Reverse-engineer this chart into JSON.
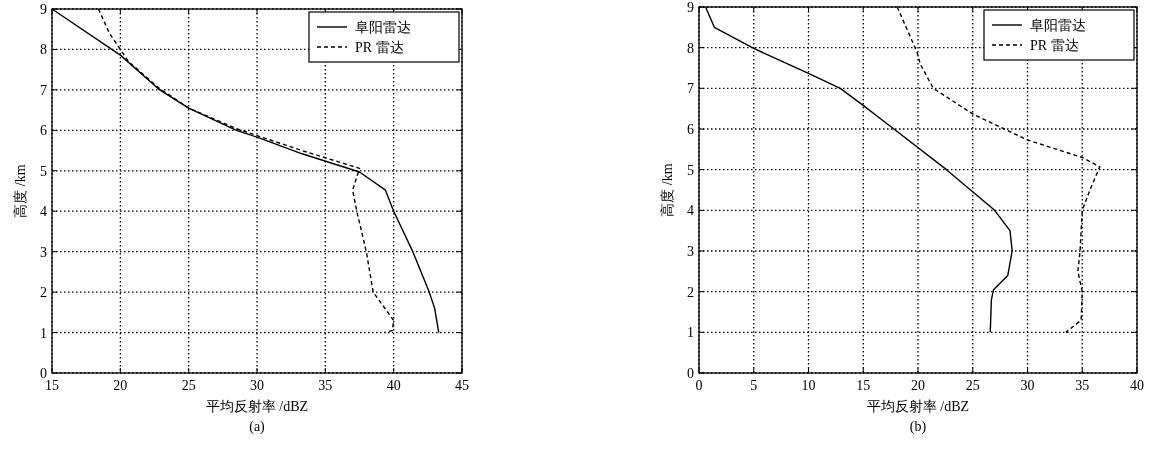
{
  "chart_data": [
    {
      "type": "line",
      "xlabel": "平均反射率 /dBZ",
      "ylabel": "高度 /km",
      "annotations": [
        "(a)"
      ],
      "xlim": [
        15,
        45
      ],
      "xticks": [
        15,
        20,
        25,
        30,
        35,
        40,
        45
      ],
      "ylim": [
        0,
        9
      ],
      "yticks": [
        0,
        1,
        2,
        3,
        4,
        5,
        6,
        7,
        8,
        9
      ],
      "grid": true,
      "legend": "top right",
      "series": [
        {
          "name": "阜阳雷达",
          "color": "#000000",
          "line_style": "solid",
          "x": [
            15,
            20,
            22.8,
            25,
            28.5,
            30,
            33.3,
            37.5,
            39.4,
            40,
            41.4,
            42.6,
            43,
            43.3
          ],
          "values": [
            9,
            7.86,
            7.02,
            6.55,
            6,
            5.83,
            5.42,
            4.97,
            4.52,
            4,
            3,
            2,
            1.6,
            1
          ]
        },
        {
          "name": "PR 雷达",
          "color": "#000000",
          "line_style": "dashed",
          "x": [
            18.4,
            19.2,
            20,
            20.6,
            22.8,
            25,
            28.5,
            30,
            33.3,
            37.5,
            37,
            37.3,
            38,
            38.5,
            40,
            39.9,
            39.3
          ],
          "values": [
            9,
            8.4,
            8,
            7.7,
            7.05,
            6.55,
            6.04,
            5.87,
            5.5,
            5.06,
            4.52,
            4,
            3,
            2,
            1.3,
            1.05,
            1
          ]
        }
      ]
    },
    {
      "type": "line",
      "xlabel": "平均反射率 /dBZ",
      "ylabel": "高度 /km",
      "annotations": [
        "(b)"
      ],
      "xlim": [
        0,
        40
      ],
      "xticks": [
        0,
        5,
        10,
        15,
        20,
        25,
        30,
        35,
        40
      ],
      "ylim": [
        0,
        9
      ],
      "yticks": [
        0,
        1,
        2,
        3,
        4,
        5,
        6,
        7,
        8,
        9
      ],
      "grid": true,
      "legend": "top right",
      "series": [
        {
          "name": "阜阳雷达",
          "color": "#000000",
          "line_style": "solid",
          "x": [
            0.6,
            1.4,
            5,
            10,
            12.9,
            14.9,
            17.8,
            22.6,
            27,
            28.4,
            28.6,
            28.2,
            26.9,
            26.7,
            26.6
          ],
          "values": [
            9,
            8.5,
            7.98,
            7.37,
            7,
            6.6,
            6,
            5,
            4,
            3.5,
            3,
            2.4,
            2.05,
            1.8,
            1
          ]
        },
        {
          "name": "PR 雷达",
          "color": "#000000",
          "line_style": "dashed",
          "x": [
            18.1,
            19.9,
            20.2,
            21.4,
            25,
            27.9,
            30,
            35,
            36.6,
            35.7,
            35,
            34.8,
            34.6,
            35,
            34.9,
            33.5
          ],
          "values": [
            9,
            7.9,
            7.6,
            7,
            6.37,
            6,
            5.73,
            5.3,
            5.07,
            4.5,
            4,
            3,
            2.5,
            2,
            1.3,
            1
          ]
        }
      ]
    }
  ]
}
